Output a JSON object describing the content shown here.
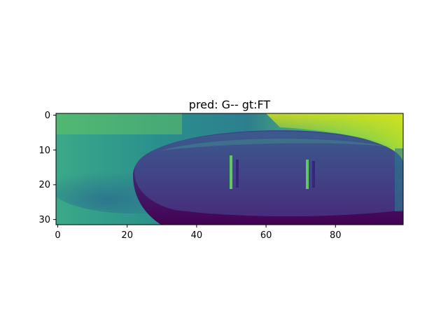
{
  "figure": {
    "title": "pred: G-- gt:FT",
    "colormap": "viridis",
    "image_shape": [
      32,
      100
    ],
    "x_axis": {
      "ticks": [
        0,
        20,
        40,
        60,
        80
      ],
      "range": [
        -0.5,
        99.5
      ]
    },
    "y_axis": {
      "ticks": [
        0,
        10,
        20,
        30
      ],
      "range": [
        -0.5,
        31.5
      ],
      "inverted": true
    },
    "image_description_colors": {
      "background_dark": "#3f4889",
      "background_mid": "#2b8c8c",
      "background_light": "#7fd34e",
      "highlight": "#d8e219",
      "shadow": "#440154"
    }
  }
}
